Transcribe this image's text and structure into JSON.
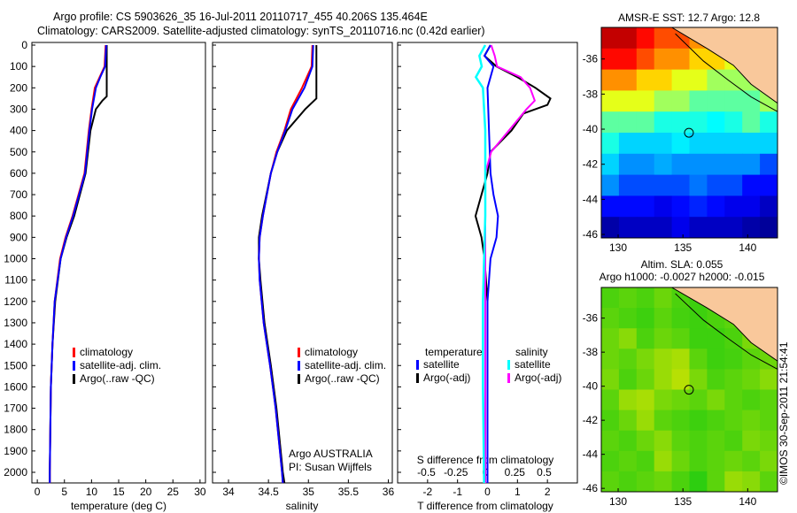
{
  "title": {
    "line1": "Argo profile: CS 5903626_35 16-Jul-2011 20110717_455 40.206S 135.464E",
    "line2": "Climatology: CARS2009. Satellite-adjusted climatology: synTS_20110716.nc (0.42d earlier)"
  },
  "colors": {
    "climatology": "#ff0000",
    "satellite": "#0000ff",
    "argo": "#000000",
    "s_satellite": "#00ffff",
    "s_argo": "#ff00ff",
    "land": "#f9c89b"
  },
  "chart_data": [
    {
      "type": "line",
      "name": "temperature",
      "xlabel": "temperature (deg C)",
      "xlim": [
        -1,
        31
      ],
      "ylim": [
        2050,
        0
      ],
      "xticks": [
        0,
        5,
        10,
        15,
        20,
        25,
        30
      ],
      "yticks": [
        0,
        100,
        200,
        300,
        400,
        500,
        600,
        700,
        800,
        900,
        1000,
        1100,
        1200,
        1300,
        1400,
        1500,
        1600,
        1700,
        1800,
        1900,
        2000
      ],
      "legend": [
        "climatology",
        "satellite-adj. clim.",
        "Argo(..raw -QC)"
      ],
      "series": [
        {
          "name": "climatology",
          "depth": [
            0,
            100,
            150,
            200,
            300,
            400,
            600,
            800,
            900,
            1000,
            1200,
            1400,
            1600,
            2000,
            2050
          ],
          "values": [
            12.6,
            12.4,
            11.5,
            10.6,
            10.0,
            9.5,
            8.7,
            6.5,
            5.2,
            4.2,
            3.2,
            2.8,
            2.5,
            2.3,
            2.3
          ]
        },
        {
          "name": "satellite-adj. clim.",
          "depth": [
            0,
            100,
            150,
            200,
            300,
            400,
            600,
            800,
            900,
            1000,
            1200,
            1400,
            1600,
            2000,
            2050
          ],
          "values": [
            12.7,
            12.5,
            11.6,
            10.8,
            10.1,
            9.6,
            8.8,
            6.6,
            5.3,
            4.3,
            3.2,
            2.8,
            2.5,
            2.3,
            2.3
          ]
        },
        {
          "name": "Argo(..raw -QC)",
          "depth": [
            0,
            100,
            240,
            260,
            300,
            400,
            600,
            800,
            900,
            1000,
            1200,
            1400,
            1600,
            2000,
            2050
          ],
          "values": [
            12.8,
            12.8,
            12.8,
            12.0,
            10.8,
            9.8,
            8.9,
            6.8,
            5.4,
            4.3,
            3.3,
            2.8,
            2.5,
            2.3,
            2.3
          ]
        }
      ]
    },
    {
      "type": "line",
      "name": "salinity",
      "xlabel": "salinity",
      "xlim": [
        33.8,
        36.05
      ],
      "ylim": [
        2050,
        0
      ],
      "xticks": [
        34,
        34.5,
        35,
        35.5,
        36
      ],
      "legend": [
        "climatology",
        "satellite-adj. clim.",
        "Argo(..raw -QC)"
      ],
      "annotation": {
        "line1": "Argo AUSTRALIA",
        "line2": "PI: Susan Wijffels"
      },
      "series": [
        {
          "name": "climatology",
          "depth": [
            0,
            100,
            200,
            300,
            400,
            500,
            600,
            800,
            900,
            1000,
            1100,
            1300,
            1500,
            1700,
            2000,
            2050
          ],
          "values": [
            35.05,
            35.04,
            34.92,
            34.78,
            34.7,
            34.6,
            34.53,
            34.43,
            34.39,
            34.38,
            34.39,
            34.44,
            34.52,
            34.59,
            34.67,
            34.68
          ]
        },
        {
          "name": "satellite-adj. clim.",
          "depth": [
            0,
            100,
            200,
            300,
            400,
            500,
            600,
            800,
            900,
            1000,
            1100,
            1300,
            1500,
            1700,
            2000,
            2050
          ],
          "values": [
            35.06,
            35.05,
            34.95,
            34.8,
            34.71,
            34.61,
            34.53,
            34.43,
            34.39,
            34.38,
            34.39,
            34.44,
            34.52,
            34.59,
            34.67,
            34.68
          ]
        },
        {
          "name": "Argo(..raw -QC)",
          "depth": [
            0,
            100,
            200,
            250,
            300,
            400,
            500,
            600,
            800,
            900,
            1000,
            1100,
            1300,
            1500,
            1700,
            2000,
            2050
          ],
          "values": [
            35.1,
            35.1,
            35.1,
            35.1,
            34.96,
            34.73,
            34.61,
            34.53,
            34.42,
            34.38,
            34.38,
            34.4,
            34.45,
            34.53,
            34.6,
            34.68,
            34.7
          ]
        }
      ]
    },
    {
      "type": "line",
      "name": "differences",
      "xlabel": "T difference from climatology",
      "x2label": "S difference from climatology",
      "xlim": [
        -3,
        3
      ],
      "ylim": [
        2050,
        0
      ],
      "xticks": [
        -2,
        -1,
        0,
        1,
        2
      ],
      "x2ticks": [
        "-0.5",
        "-0.25",
        "0",
        "0.25",
        "0.5"
      ],
      "legend": {
        "temperature_title": "temperature",
        "salinity_title": "salinity",
        "t_sat": "satellite",
        "t_argo": "Argo(-adj)",
        "s_sat": "satellite",
        "s_argo": "Argo(-adj)"
      },
      "series": [
        {
          "name": "T satellite",
          "depth": [
            0,
            50,
            100,
            200,
            400,
            600,
            700,
            800,
            900,
            1000,
            1200,
            1600,
            2050
          ],
          "values": [
            0.1,
            -0.1,
            0.2,
            0.0,
            0.05,
            0.1,
            0.2,
            0.35,
            0.3,
            0.1,
            0.0,
            0.0,
            0.0
          ]
        },
        {
          "name": "T Argo(-adj)",
          "depth": [
            0,
            50,
            100,
            150,
            200,
            250,
            280,
            320,
            400,
            500,
            600,
            700,
            800,
            900,
            1000,
            1200,
            1600,
            2050
          ],
          "values": [
            0.1,
            -0.1,
            0.3,
            1.0,
            1.6,
            2.1,
            2.0,
            1.2,
            0.8,
            0.1,
            0.0,
            -0.2,
            -0.4,
            -0.2,
            -0.1,
            0.0,
            0.0,
            0.0
          ]
        },
        {
          "name": "S satellite",
          "depth": [
            0,
            50,
            100,
            150,
            200,
            400,
            800,
            1200,
            1600,
            2050
          ],
          "values": [
            0.0,
            -0.05,
            -0.03,
            -0.08,
            -0.02,
            0.0,
            0.0,
            -0.02,
            -0.02,
            -0.01
          ]
        },
        {
          "name": "S Argo(-adj)",
          "depth": [
            0,
            50,
            100,
            150,
            200,
            260,
            300,
            400,
            500,
            600,
            800,
            1200,
            1600,
            2050
          ],
          "values": [
            0.05,
            0.08,
            0.1,
            0.3,
            0.38,
            0.42,
            0.35,
            0.2,
            0.05,
            0.0,
            0.0,
            0.0,
            0.0,
            0.0
          ]
        }
      ]
    },
    {
      "type": "heatmap",
      "name": "sst-map",
      "title": "AMSR-E SST: 12.7 Argo: 12.8",
      "xticks": [
        130,
        135,
        140
      ],
      "yticks": [
        -36,
        -38,
        -40,
        -42,
        -44,
        -46
      ],
      "lon": [
        128.7,
        142.3
      ],
      "lat": [
        -46.2,
        -34.2
      ],
      "argo_position": [
        135.464,
        -40.206
      ],
      "grid": [
        [
          17,
          17,
          16.5,
          16,
          16,
          15.5,
          15,
          15.5,
          16,
          16
        ],
        [
          16.5,
          16.5,
          16,
          15.5,
          15.5,
          15,
          15,
          14.5,
          14.5,
          15
        ],
        [
          15.5,
          15.5,
          15,
          15,
          14.5,
          14.5,
          14,
          14,
          14,
          14.5
        ],
        [
          14.5,
          14.5,
          14.5,
          14,
          14,
          13.5,
          13.5,
          13.5,
          13.5,
          14
        ],
        [
          13.5,
          13.5,
          13.5,
          13,
          13,
          13,
          12.8,
          13,
          13.5,
          13
        ],
        [
          13,
          12.5,
          12.5,
          12.5,
          12.7,
          12.5,
          12.5,
          12.5,
          12.5,
          12.5
        ],
        [
          12.5,
          12,
          12,
          12.2,
          12,
          12,
          12,
          12,
          12,
          11.5
        ],
        [
          12,
          11.5,
          11.5,
          11.5,
          11.5,
          11.8,
          11.5,
          11.5,
          11,
          11
        ],
        [
          11,
          11,
          11,
          10.8,
          11,
          11.2,
          11,
          10.8,
          10.8,
          10.5
        ],
        [
          10.3,
          10.5,
          10.5,
          10.5,
          10.8,
          10.5,
          10.5,
          10.5,
          10.3,
          10.2
        ]
      ],
      "range": [
        10,
        17.5
      ]
    },
    {
      "type": "heatmap",
      "name": "sla-map",
      "title": "Altim. SLA: 0.055",
      "subtitle": "Argo h1000: -0.0027 h2000: -0.015",
      "xticks": [
        130,
        135,
        140
      ],
      "yticks": [
        -36,
        -38,
        -40,
        -42,
        -44,
        -46
      ],
      "argo_position": [
        135.464,
        -40.206
      ],
      "grid": [
        [
          0.0,
          0.02,
          0.0,
          0.04,
          0.0,
          -0.02,
          0.0,
          0.02,
          0.04,
          0.0
        ],
        [
          0.02,
          0.0,
          -0.02,
          0.02,
          -0.01,
          -0.02,
          0.0,
          0.02,
          0.08,
          0.02
        ],
        [
          0.04,
          0.08,
          0.0,
          0.04,
          0.02,
          -0.02,
          -0.02,
          0.0,
          0.06,
          0.0
        ],
        [
          0.04,
          0.02,
          0.06,
          0.1,
          0.12,
          0.02,
          -0.02,
          -0.01,
          0.02,
          0.04
        ],
        [
          0.06,
          0.0,
          0.04,
          0.1,
          0.14,
          0.06,
          0.0,
          0.02,
          0.04,
          0.08
        ],
        [
          0.02,
          0.1,
          0.12,
          0.06,
          0.04,
          0.02,
          0.06,
          0.02,
          0.0,
          0.02
        ],
        [
          0.0,
          0.04,
          0.1,
          0.02,
          0.0,
          -0.02,
          0.0,
          0.02,
          0.04,
          0.02
        ],
        [
          0.02,
          0.0,
          0.04,
          0.08,
          0.02,
          0.0,
          0.02,
          0.0,
          0.06,
          0.04
        ],
        [
          0.0,
          0.02,
          0.0,
          0.1,
          0.04,
          0.0,
          0.02,
          0.04,
          0.02,
          0.06
        ],
        [
          0.02,
          0.0,
          0.02,
          0.04,
          0.0,
          -0.04,
          0.02,
          0.1,
          0.08,
          0.02
        ]
      ],
      "range": [
        -0.1,
        0.2
      ]
    }
  ],
  "credit": "©IMOS 30-Sep-2011 21:54:41"
}
